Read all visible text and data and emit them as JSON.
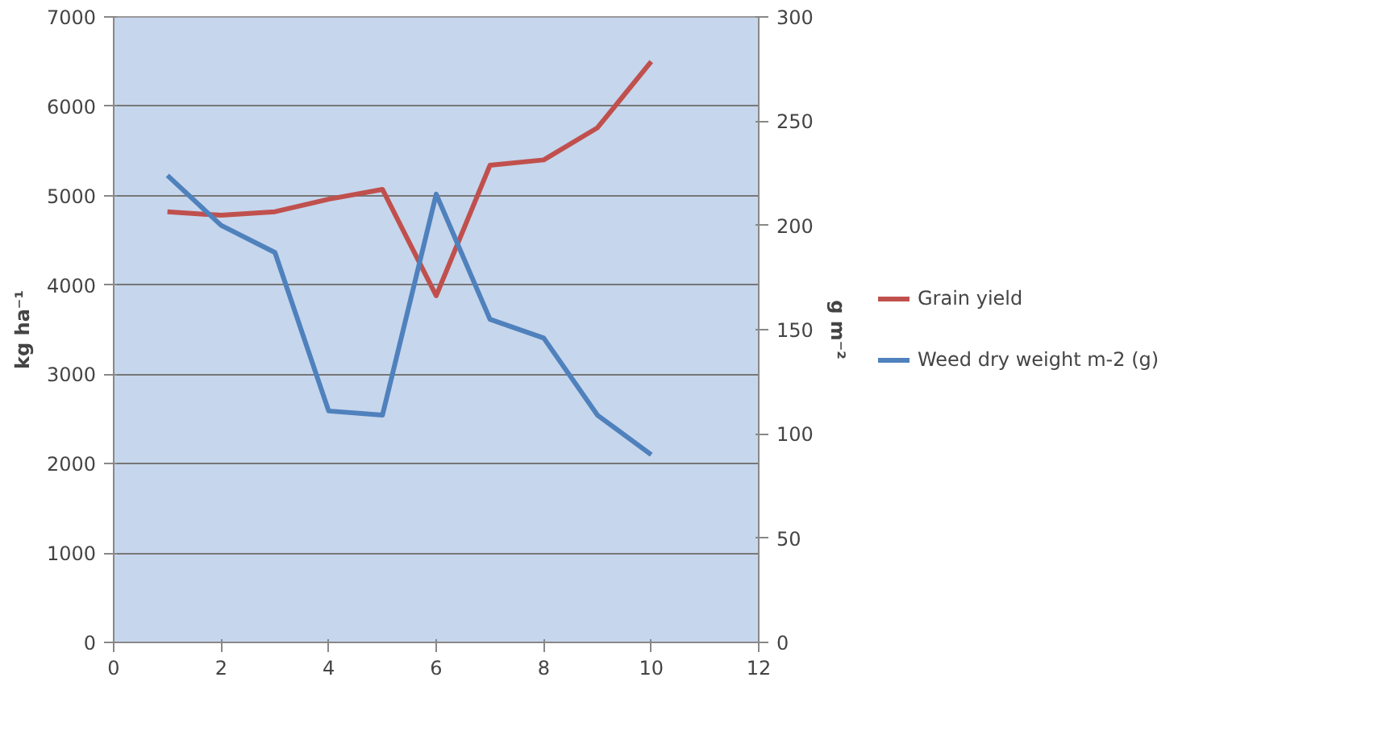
{
  "chart_data": {
    "type": "line",
    "ylabel": "kg ha⁻¹",
    "y2label": "g m⁻²",
    "x": [
      1,
      2,
      3,
      4,
      5,
      6,
      7,
      8,
      9,
      10
    ],
    "series": [
      {
        "name": "Grain yield",
        "color": "#c0504d",
        "values": [
          4820,
          4780,
          4820,
          4960,
          5070,
          3880,
          5340,
          5400,
          5760,
          6500
        ]
      },
      {
        "name": "Weed dry weight m-2 (g)",
        "color": "#4f81bd",
        "axis": "y2",
        "values": [
          224,
          200,
          187,
          111,
          109,
          215,
          155,
          146,
          109,
          90
        ]
      }
    ],
    "xlim": [
      0,
      12
    ],
    "xticks": [
      0,
      2,
      4,
      6,
      8,
      10,
      12
    ],
    "ylim": [
      0,
      7000
    ],
    "yticks": [
      0,
      1000,
      2000,
      3000,
      4000,
      5000,
      6000,
      7000
    ],
    "y2lim": [
      0,
      300
    ],
    "y2ticks": [
      0,
      50,
      100,
      150,
      200,
      250,
      300
    ],
    "grid": "y",
    "legend": "right",
    "marker": "none",
    "line_style": "solid"
  }
}
